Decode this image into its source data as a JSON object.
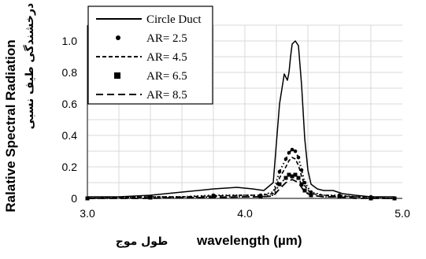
{
  "chart_data": {
    "type": "line",
    "xlabel": "wavelength (µm)",
    "xlabel_fa": "طول موج",
    "ylabel": "Ralative Spectral Radiation",
    "ylabel_fa": "درخشندگی طیف نسبی",
    "xlim": [
      3.0,
      5.0
    ],
    "ylim": [
      0,
      1.1
    ],
    "xticks": [
      "3.0",
      "4.0",
      "5.0"
    ],
    "yticks": [
      "0",
      "0.2",
      "0.4",
      "0.6",
      "0.8",
      "1.0"
    ],
    "grid": true,
    "legend_position": "top-left",
    "series": [
      {
        "name": "Circle Duct",
        "style": "solid",
        "x": [
          3.0,
          3.2,
          3.4,
          3.6,
          3.8,
          3.95,
          4.05,
          4.12,
          4.18,
          4.22,
          4.25,
          4.27,
          4.28,
          4.29,
          4.3,
          4.32,
          4.34,
          4.36,
          4.38,
          4.4,
          4.42,
          4.46,
          4.5,
          4.56,
          4.62,
          4.7,
          4.8,
          4.9,
          4.95
        ],
        "y": [
          0.01,
          0.01,
          0.02,
          0.04,
          0.06,
          0.07,
          0.06,
          0.05,
          0.1,
          0.6,
          0.79,
          0.75,
          0.8,
          0.9,
          0.98,
          1.0,
          0.97,
          0.72,
          0.38,
          0.18,
          0.09,
          0.06,
          0.05,
          0.05,
          0.03,
          0.02,
          0.01,
          0.01,
          0.01
        ]
      },
      {
        "name": "AR= 2.5",
        "style": "dotted",
        "x": [
          3.0,
          3.2,
          3.4,
          3.6,
          3.8,
          4.0,
          4.1,
          4.18,
          4.22,
          4.26,
          4.28,
          4.3,
          4.32,
          4.34,
          4.36,
          4.38,
          4.42,
          4.5,
          4.6,
          4.7,
          4.8,
          4.9,
          4.95
        ],
        "y": [
          0.0,
          0.005,
          0.01,
          0.01,
          0.02,
          0.02,
          0.02,
          0.04,
          0.17,
          0.25,
          0.29,
          0.31,
          0.3,
          0.26,
          0.18,
          0.1,
          0.04,
          0.02,
          0.02,
          0.01,
          0.01,
          0.0,
          0.0
        ]
      },
      {
        "name": "AR= 4.5",
        "style": "dashed",
        "x": [
          3.0,
          3.2,
          3.4,
          3.6,
          3.8,
          4.0,
          4.1,
          4.18,
          4.22,
          4.26,
          4.28,
          4.3,
          4.32,
          4.34,
          4.36,
          4.38,
          4.42,
          4.5,
          4.6,
          4.7,
          4.8,
          4.9,
          4.95
        ],
        "y": [
          0.0,
          0.005,
          0.01,
          0.01,
          0.015,
          0.02,
          0.02,
          0.03,
          0.13,
          0.2,
          0.24,
          0.26,
          0.25,
          0.21,
          0.14,
          0.08,
          0.03,
          0.02,
          0.015,
          0.01,
          0.01,
          0.0,
          0.0
        ]
      },
      {
        "name": "AR= 6.5",
        "style": "square-markers",
        "x": [
          3.0,
          3.2,
          3.4,
          3.6,
          3.8,
          4.0,
          4.1,
          4.18,
          4.22,
          4.26,
          4.28,
          4.3,
          4.32,
          4.34,
          4.36,
          4.38,
          4.42,
          4.5,
          4.6,
          4.7,
          4.8,
          4.9,
          4.95
        ],
        "y": [
          0.0,
          0.0,
          0.005,
          0.005,
          0.01,
          0.01,
          0.01,
          0.02,
          0.09,
          0.13,
          0.15,
          0.14,
          0.15,
          0.13,
          0.09,
          0.05,
          0.02,
          0.01,
          0.01,
          0.01,
          0.0,
          0.0,
          0.0
        ]
      },
      {
        "name": "AR= 8.5",
        "style": "long-dash",
        "x": [
          3.0,
          3.2,
          3.4,
          3.6,
          3.8,
          4.0,
          4.1,
          4.18,
          4.22,
          4.26,
          4.28,
          4.3,
          4.32,
          4.34,
          4.36,
          4.38,
          4.42,
          4.5,
          4.6,
          4.7,
          4.8,
          4.9,
          4.95
        ],
        "y": [
          0.0,
          0.0,
          0.0,
          0.005,
          0.005,
          0.01,
          0.01,
          0.015,
          0.06,
          0.1,
          0.11,
          0.12,
          0.11,
          0.1,
          0.07,
          0.04,
          0.02,
          0.01,
          0.01,
          0.0,
          0.0,
          0.0,
          0.0
        ]
      }
    ]
  }
}
